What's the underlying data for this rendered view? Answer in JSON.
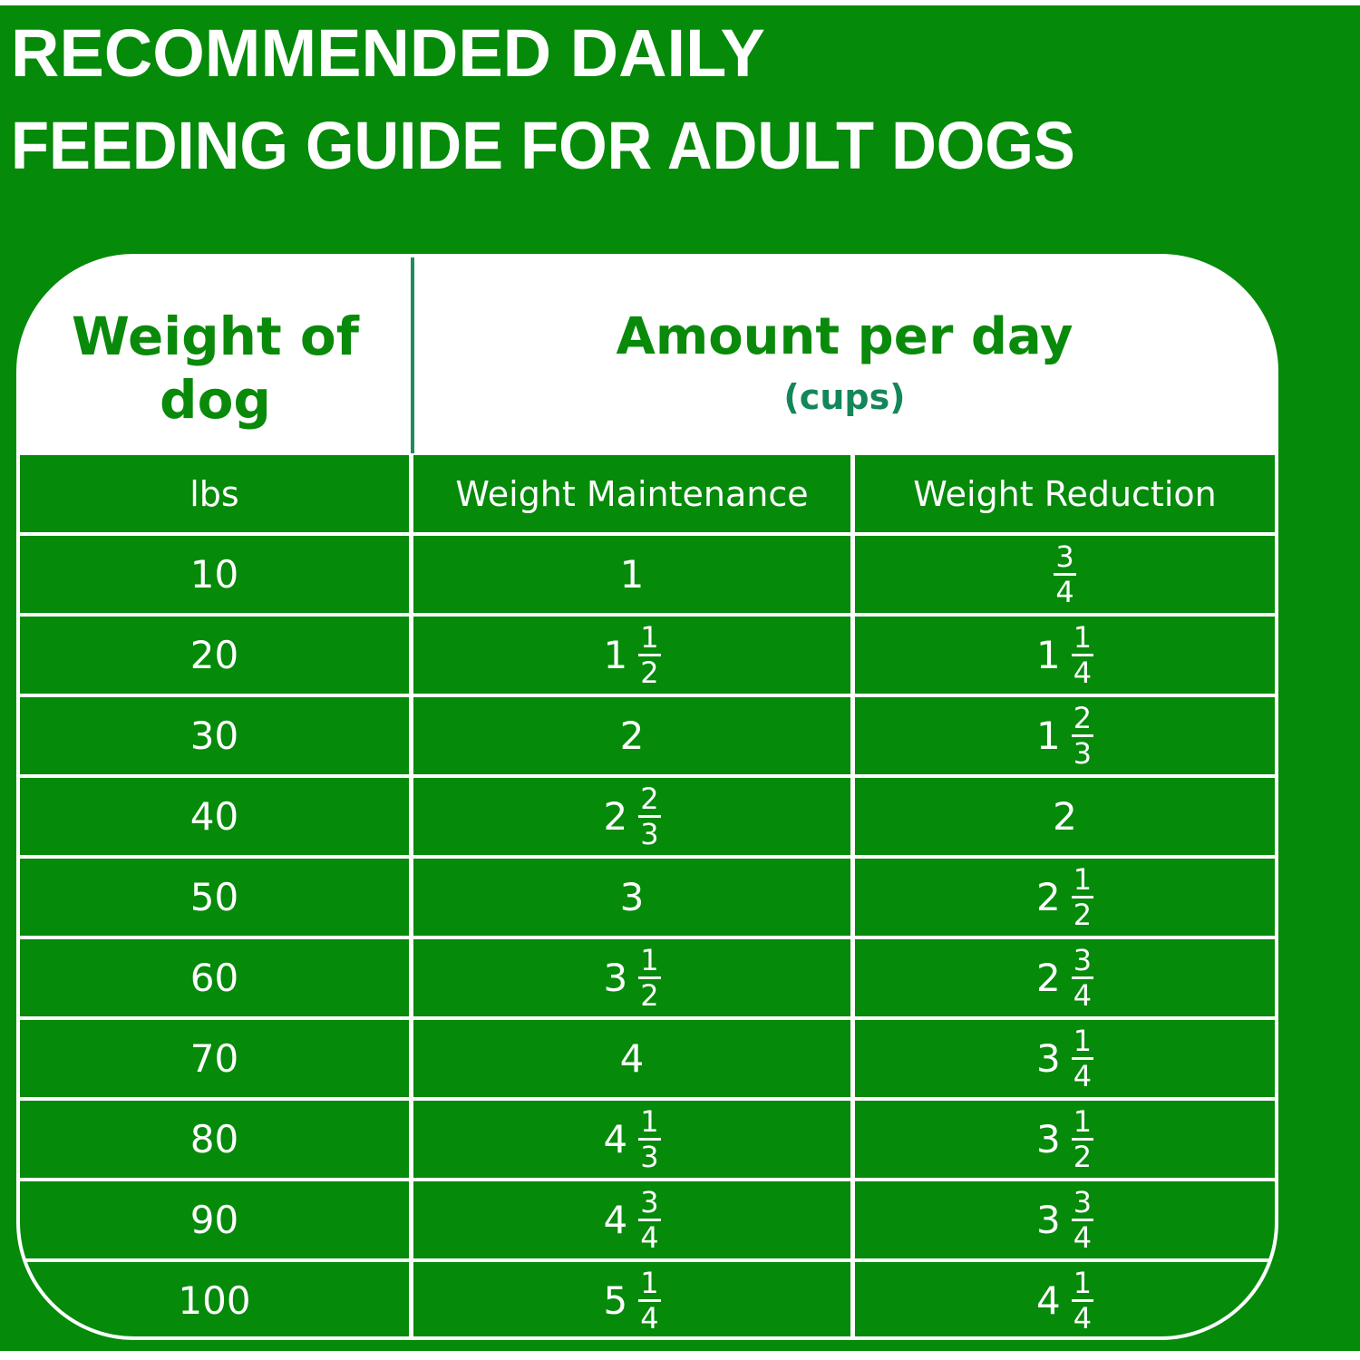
{
  "title": {
    "line1": "RECOMMENDED DAILY",
    "line2": "FEEDING GUIDE FOR ADULT DOGS"
  },
  "colors": {
    "brand_green": "#058a0a",
    "subtitle_teal": "#14875a"
  },
  "header": {
    "weight_col": "Weight of dog",
    "amount_col": "Amount per day",
    "amount_unit": "(cups)"
  },
  "columns": [
    "lbs",
    "Weight Maintenance",
    "Weight Reduction"
  ],
  "rows": [
    {
      "lbs": "10",
      "maintenance": {
        "whole": "1",
        "num": "",
        "den": ""
      },
      "reduction": {
        "whole": "",
        "num": "3",
        "den": "4"
      }
    },
    {
      "lbs": "20",
      "maintenance": {
        "whole": "1",
        "num": "1",
        "den": "2"
      },
      "reduction": {
        "whole": "1",
        "num": "1",
        "den": "4"
      }
    },
    {
      "lbs": "30",
      "maintenance": {
        "whole": "2",
        "num": "",
        "den": ""
      },
      "reduction": {
        "whole": "1",
        "num": "2",
        "den": "3"
      }
    },
    {
      "lbs": "40",
      "maintenance": {
        "whole": "2",
        "num": "2",
        "den": "3"
      },
      "reduction": {
        "whole": "2",
        "num": "",
        "den": ""
      }
    },
    {
      "lbs": "50",
      "maintenance": {
        "whole": "3",
        "num": "",
        "den": ""
      },
      "reduction": {
        "whole": "2",
        "num": "1",
        "den": "2"
      }
    },
    {
      "lbs": "60",
      "maintenance": {
        "whole": "3",
        "num": "1",
        "den": "2"
      },
      "reduction": {
        "whole": "2",
        "num": "3",
        "den": "4"
      }
    },
    {
      "lbs": "70",
      "maintenance": {
        "whole": "4",
        "num": "",
        "den": ""
      },
      "reduction": {
        "whole": "3",
        "num": "1",
        "den": "4"
      }
    },
    {
      "lbs": "80",
      "maintenance": {
        "whole": "4",
        "num": "1",
        "den": "3"
      },
      "reduction": {
        "whole": "3",
        "num": "1",
        "den": "2"
      }
    },
    {
      "lbs": "90",
      "maintenance": {
        "whole": "4",
        "num": "3",
        "den": "4"
      },
      "reduction": {
        "whole": "3",
        "num": "3",
        "den": "4"
      }
    },
    {
      "lbs": "100",
      "maintenance": {
        "whole": "5",
        "num": "1",
        "den": "4"
      },
      "reduction": {
        "whole": "4",
        "num": "1",
        "den": "4"
      }
    }
  ]
}
